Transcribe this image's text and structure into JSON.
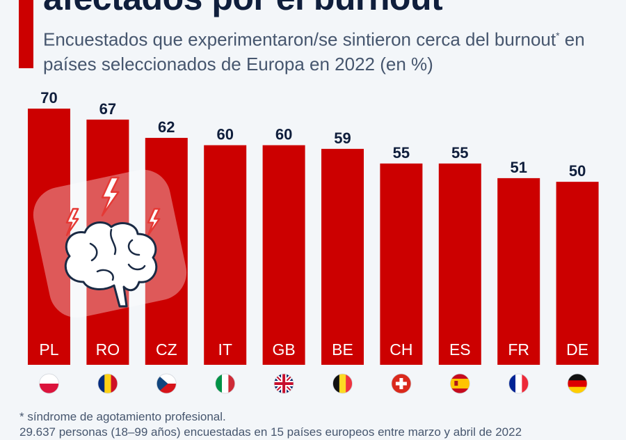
{
  "header": {
    "title": "afectados por el burnout",
    "subtitle_pre": "Encuestados que experimentaron/se sintieron cerca del burnout",
    "subtitle_mark": "*",
    "subtitle_post": " en países seleccionados de Europa en 2022 (en %)"
  },
  "chart_data": {
    "type": "bar",
    "categories": [
      "PL",
      "RO",
      "CZ",
      "IT",
      "GB",
      "BE",
      "CH",
      "ES",
      "FR",
      "DE"
    ],
    "values": [
      70,
      67,
      62,
      60,
      60,
      59,
      55,
      55,
      51,
      50
    ],
    "ylim": [
      0,
      70
    ],
    "grid": false,
    "bar_color": "#cc0000",
    "flags": [
      "poland-flag",
      "romania-flag",
      "czechia-flag",
      "italy-flag",
      "uk-flag",
      "belgium-flag",
      "switzerland-flag",
      "spain-flag",
      "france-flag",
      "germany-flag"
    ],
    "illustration": "stressed-brain-icon"
  },
  "footer": {
    "note": "* síndrome de agotamiento profesional.",
    "source": "29.637 personas (18–99 años) encuestadas en 15 países europeos entre marzo y abril de 2022"
  }
}
